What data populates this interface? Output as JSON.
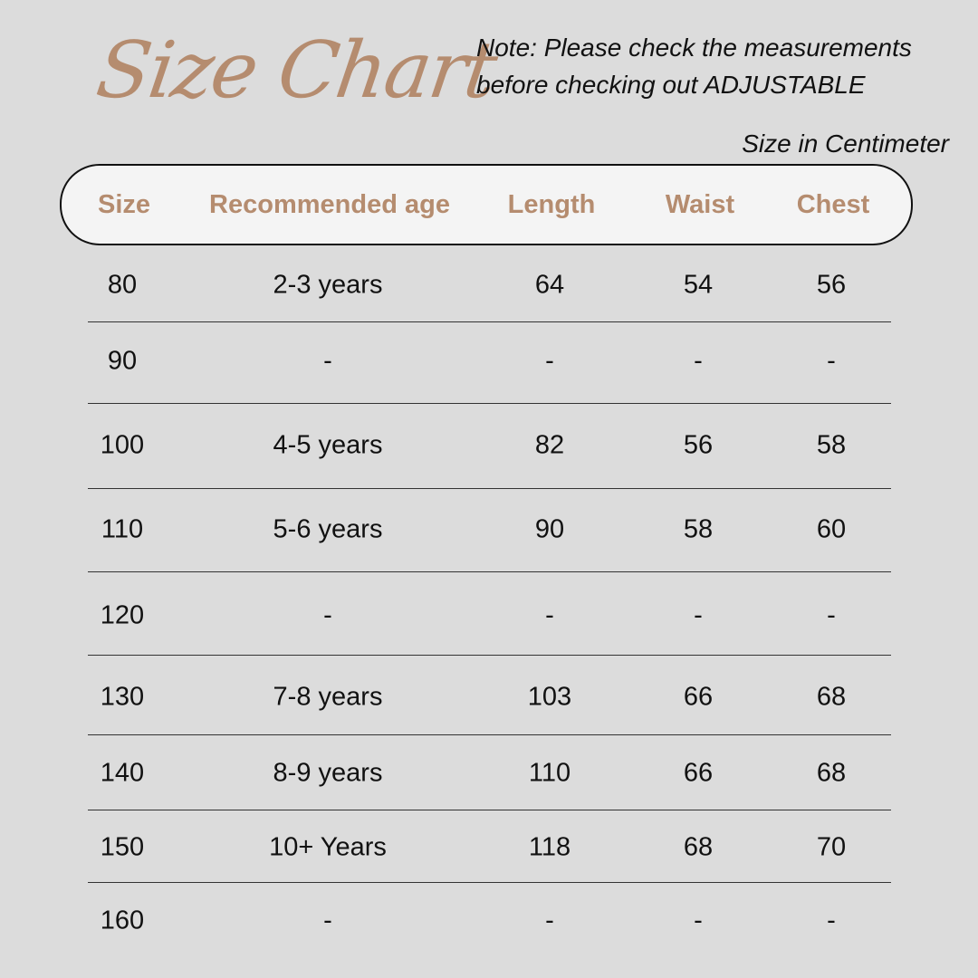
{
  "title": "Size Chart",
  "note_line1": "Note: Please check the measurements",
  "note_line2": "before checking out  ADJUSTABLE",
  "unit": "Size in Centimeter",
  "colors": {
    "accent": "#b58c6f",
    "background": "#dcdcdc",
    "header_bg": "#f4f4f4"
  },
  "headers": [
    "Size",
    "Recommended age",
    "Length",
    "Waist",
    "Chest"
  ],
  "rows": [
    [
      "80",
      "2-3 years",
      "64",
      "54",
      "56"
    ],
    [
      "90",
      "-",
      "-",
      "-",
      "-"
    ],
    [
      "100",
      "4-5 years",
      "82",
      "56",
      "58"
    ],
    [
      "110",
      "5-6 years",
      "90",
      "58",
      "60"
    ],
    [
      "120",
      "-",
      "-",
      "-",
      "-"
    ],
    [
      "130",
      "7-8 years",
      "103",
      "66",
      "68"
    ],
    [
      "140",
      "8-9 years",
      "110",
      "66",
      "68"
    ],
    [
      "150",
      "10+ Years",
      "118",
      "68",
      "70"
    ],
    [
      "160",
      "-",
      "-",
      "-",
      "-"
    ]
  ]
}
